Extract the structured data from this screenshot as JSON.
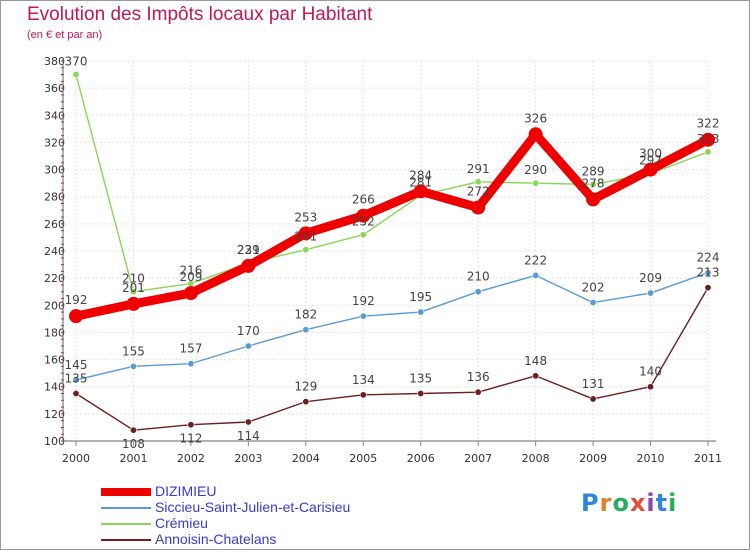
{
  "header": {
    "title": "Evolution des Impôts locaux par Habitant",
    "subtitle": "(en € et par an)"
  },
  "logo": {
    "text": "Proxiti",
    "letters": [
      "P",
      "r",
      "o",
      "x",
      "i",
      "t",
      "i"
    ],
    "colors": [
      "#2e86de",
      "#e67e22",
      "#27ae60",
      "#e74c3c",
      "#8e44ad",
      "#2e86de",
      "#27ae60"
    ]
  },
  "chart_data": {
    "type": "line",
    "title": "Evolution des Impôts locaux par Habitant",
    "subtitle": "(en € et par an)",
    "xlabel": "",
    "ylabel": "",
    "ylim": [
      100,
      380
    ],
    "yticks": [
      100,
      120,
      140,
      160,
      180,
      200,
      220,
      240,
      260,
      280,
      300,
      320,
      340,
      360,
      380
    ],
    "grid": true,
    "categories": [
      "2000",
      "2001",
      "2002",
      "2003",
      "2004",
      "2005",
      "2006",
      "2007",
      "2008",
      "2009",
      "2010",
      "2011"
    ],
    "series": [
      {
        "name": "DIZIMIEU",
        "color": "#ee0000",
        "values": [
          192,
          201,
          209,
          229,
          253,
          266,
          284,
          272,
          326,
          278,
          300,
          322
        ]
      },
      {
        "name": "Siccieu-Saint-Julien-et-Carisieu",
        "color": "#5b9bd5",
        "values": [
          145,
          155,
          157,
          170,
          182,
          192,
          195,
          210,
          222,
          202,
          209,
          224
        ]
      },
      {
        "name": "Crémieu",
        "color": "#88d65a",
        "values": [
          370,
          210,
          216,
          231,
          241,
          252,
          281,
          291,
          290,
          289,
          297,
          313
        ]
      },
      {
        "name": "Annoisin-Chatelans",
        "color": "#6d1f1f",
        "values": [
          135,
          108,
          112,
          114,
          129,
          134,
          135,
          136,
          148,
          131,
          140,
          213
        ]
      }
    ],
    "legend_position": "bottom-left"
  }
}
